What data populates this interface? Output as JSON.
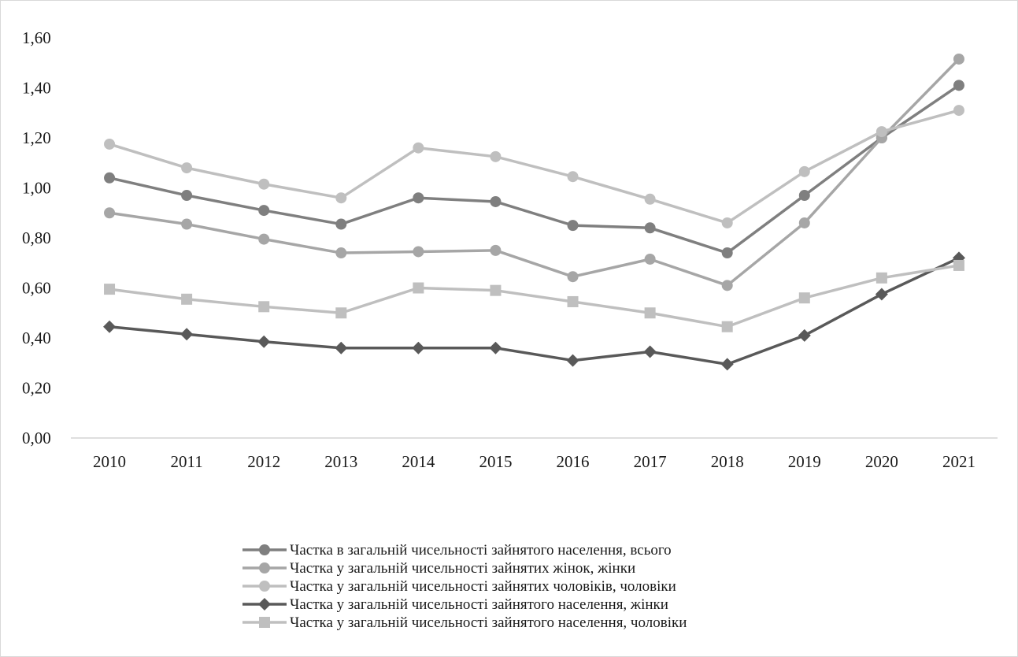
{
  "chart_data": {
    "type": "line",
    "title": "",
    "xlabel": "",
    "ylabel": "",
    "x": [
      "2010",
      "2011",
      "2012",
      "2013",
      "2014",
      "2015",
      "2016",
      "2017",
      "2018",
      "2019",
      "2020",
      "2021"
    ],
    "ylim": [
      0,
      1.6
    ],
    "yticks": [
      "0,00",
      "0,20",
      "0,40",
      "0,60",
      "0,80",
      "1,00",
      "1,20",
      "1,40",
      "1,60"
    ],
    "grid": false,
    "legend_position": "bottom",
    "series": [
      {
        "name": "Частка в загальній чисельності зайнятого населення, всього",
        "marker": "circle",
        "color": "#7f7f7f",
        "values": [
          1.04,
          0.97,
          0.91,
          0.855,
          0.96,
          0.945,
          0.85,
          0.84,
          0.74,
          0.97,
          1.2,
          1.41
        ]
      },
      {
        "name": "Частка у загальній чисельності зайнятих жінок, жінки",
        "marker": "circle",
        "color": "#a6a6a6",
        "values": [
          0.9,
          0.855,
          0.795,
          0.74,
          0.745,
          0.75,
          0.645,
          0.715,
          0.61,
          0.86,
          1.2,
          1.515
        ]
      },
      {
        "name": "Частка у загальній чисельності зайнятих чоловіків, чоловіки",
        "marker": "circle",
        "color": "#bfbfbf",
        "values": [
          1.175,
          1.08,
          1.015,
          0.96,
          1.16,
          1.125,
          1.045,
          0.955,
          0.86,
          1.065,
          1.225,
          1.31
        ]
      },
      {
        "name": "Частка у загальній чисельності зайнятого населення, жінки",
        "marker": "diamond",
        "color": "#595959",
        "values": [
          0.445,
          0.415,
          0.385,
          0.36,
          0.36,
          0.36,
          0.31,
          0.345,
          0.295,
          0.41,
          0.575,
          0.72
        ]
      },
      {
        "name": "Частка у загальній чисельності зайнятого населення, чоловіки",
        "marker": "square",
        "color": "#bfbfbf",
        "values": [
          0.595,
          0.555,
          0.525,
          0.5,
          0.6,
          0.59,
          0.545,
          0.5,
          0.445,
          0.56,
          0.64,
          0.69
        ]
      }
    ]
  }
}
